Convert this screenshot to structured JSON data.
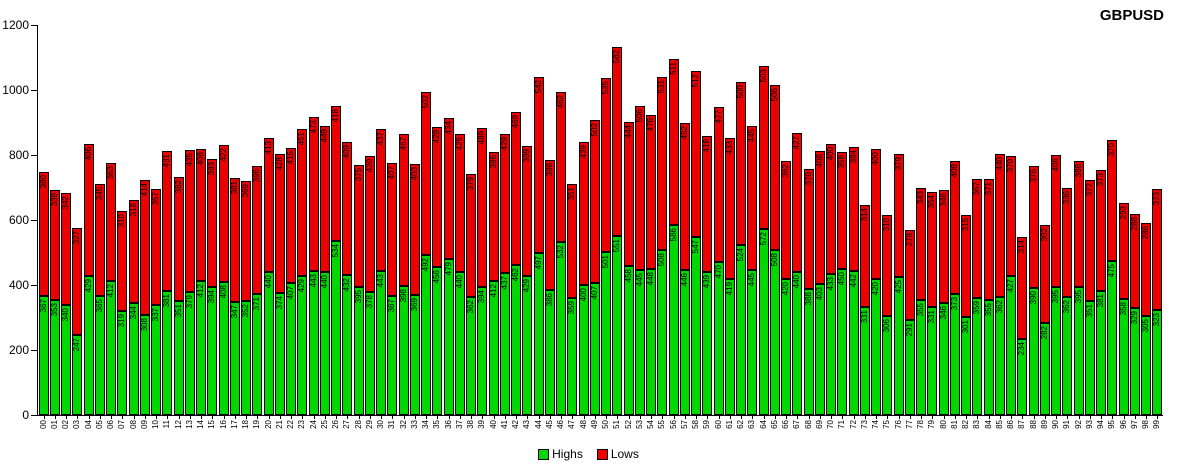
{
  "title": "GBPUSD",
  "legend": {
    "items": [
      {
        "label": "Highs",
        "color": "#00d800"
      },
      {
        "label": "Lows",
        "color": "#ed0000"
      }
    ]
  },
  "chart_data": {
    "type": "bar",
    "stacked": true,
    "title": "GBPUSD",
    "xlabel": "",
    "ylabel": "",
    "ylim": [
      0,
      1200
    ],
    "yticks": [
      0,
      200,
      400,
      600,
      800,
      1000,
      1200
    ],
    "grid": false,
    "legend_position": "bottom",
    "bar_value_labels": true,
    "categories": [
      "00",
      "01",
      "02",
      "03",
      "04",
      "05",
      "06",
      "07",
      "08",
      "09",
      "10",
      "11",
      "12",
      "13",
      "14",
      "15",
      "16",
      "17",
      "18",
      "19",
      "20",
      "21",
      "22",
      "23",
      "24",
      "25",
      "26",
      "27",
      "28",
      "29",
      "30",
      "31",
      "32",
      "33",
      "34",
      "35",
      "36",
      "37",
      "38",
      "39",
      "40",
      "41",
      "42",
      "43",
      "44",
      "45",
      "46",
      "47",
      "48",
      "49",
      "50",
      "51",
      "52",
      "53",
      "54",
      "55",
      "56",
      "57",
      "58",
      "59",
      "60",
      "61",
      "62",
      "63",
      "64",
      "65",
      "66",
      "67",
      "68",
      "69",
      "70",
      "71",
      "72",
      "73",
      "74",
      "75",
      "76",
      "77",
      "78",
      "79",
      "80",
      "81",
      "82",
      "83",
      "84",
      "85",
      "86",
      "87",
      "88",
      "89",
      "90",
      "91",
      "92",
      "93",
      "94",
      "95",
      "96",
      "97",
      "98",
      "99"
    ],
    "series": [
      {
        "name": "Highs",
        "color": "#00d800",
        "values": [
          367,
          353,
          340,
          247,
          429,
          365,
          412,
          319,
          344,
          308,
          337,
          381,
          351,
          379,
          412,
          394,
          408,
          347,
          352,
          371,
          440,
          374,
          407,
          429,
          443,
          440,
          534,
          432,
          395,
          378,
          443,
          367,
          398,
          369,
          492,
          456,
          479,
          440,
          362,
          394,
          412,
          437,
          462,
          429,
          497,
          386,
          532,
          359,
          400,
          407,
          501,
          551,
          458,
          445,
          448,
          508,
          586,
          446,
          547,
          439,
          470,
          419,
          524,
          445,
          572,
          508,
          420,
          440,
          388,
          403,
          433,
          450,
          442,
          331,
          420,
          306,
          425,
          291,
          355,
          331,
          346,
          373,
          301,
          359,
          355,
          362,
          427,
          234,
          390,
          282,
          395,
          362,
          395,
          351,
          381,
          475,
          358,
          329,
          305,
          323
        ]
      },
      {
        "name": "Lows",
        "color": "#ed0000",
        "values": [
          380,
          339,
          342,
          327,
          406,
          345,
          363,
          310,
          318,
          414,
          357,
          431,
          382,
          435,
          408,
          393,
          422,
          381,
          369,
          396,
          413,
          428,
          415,
          451,
          473,
          449,
          418,
          409,
          375,
          420,
          437,
          407,
          467,
          403,
          502,
          429,
          434,
          425,
          379,
          489,
          396,
          429,
          469,
          399,
          542,
          398,
          462,
          351,
          439,
          502,
          535,
          582,
          444,
          506,
          476,
          531,
          511,
          452,
          512,
          418,
          477,
          433,
          500,
          445,
          503,
          506,
          362,
          427,
          370,
          408,
          400,
          358,
          384,
          314,
          400,
          310,
          379,
          278,
          343,
          354,
          346,
          408,
          315,
          367,
          371,
          440,
          370,
          314,
          376,
          302,
          406,
          336,
          388,
          372,
          373,
          370,
          293,
          288,
          286,
          373
        ]
      }
    ]
  }
}
